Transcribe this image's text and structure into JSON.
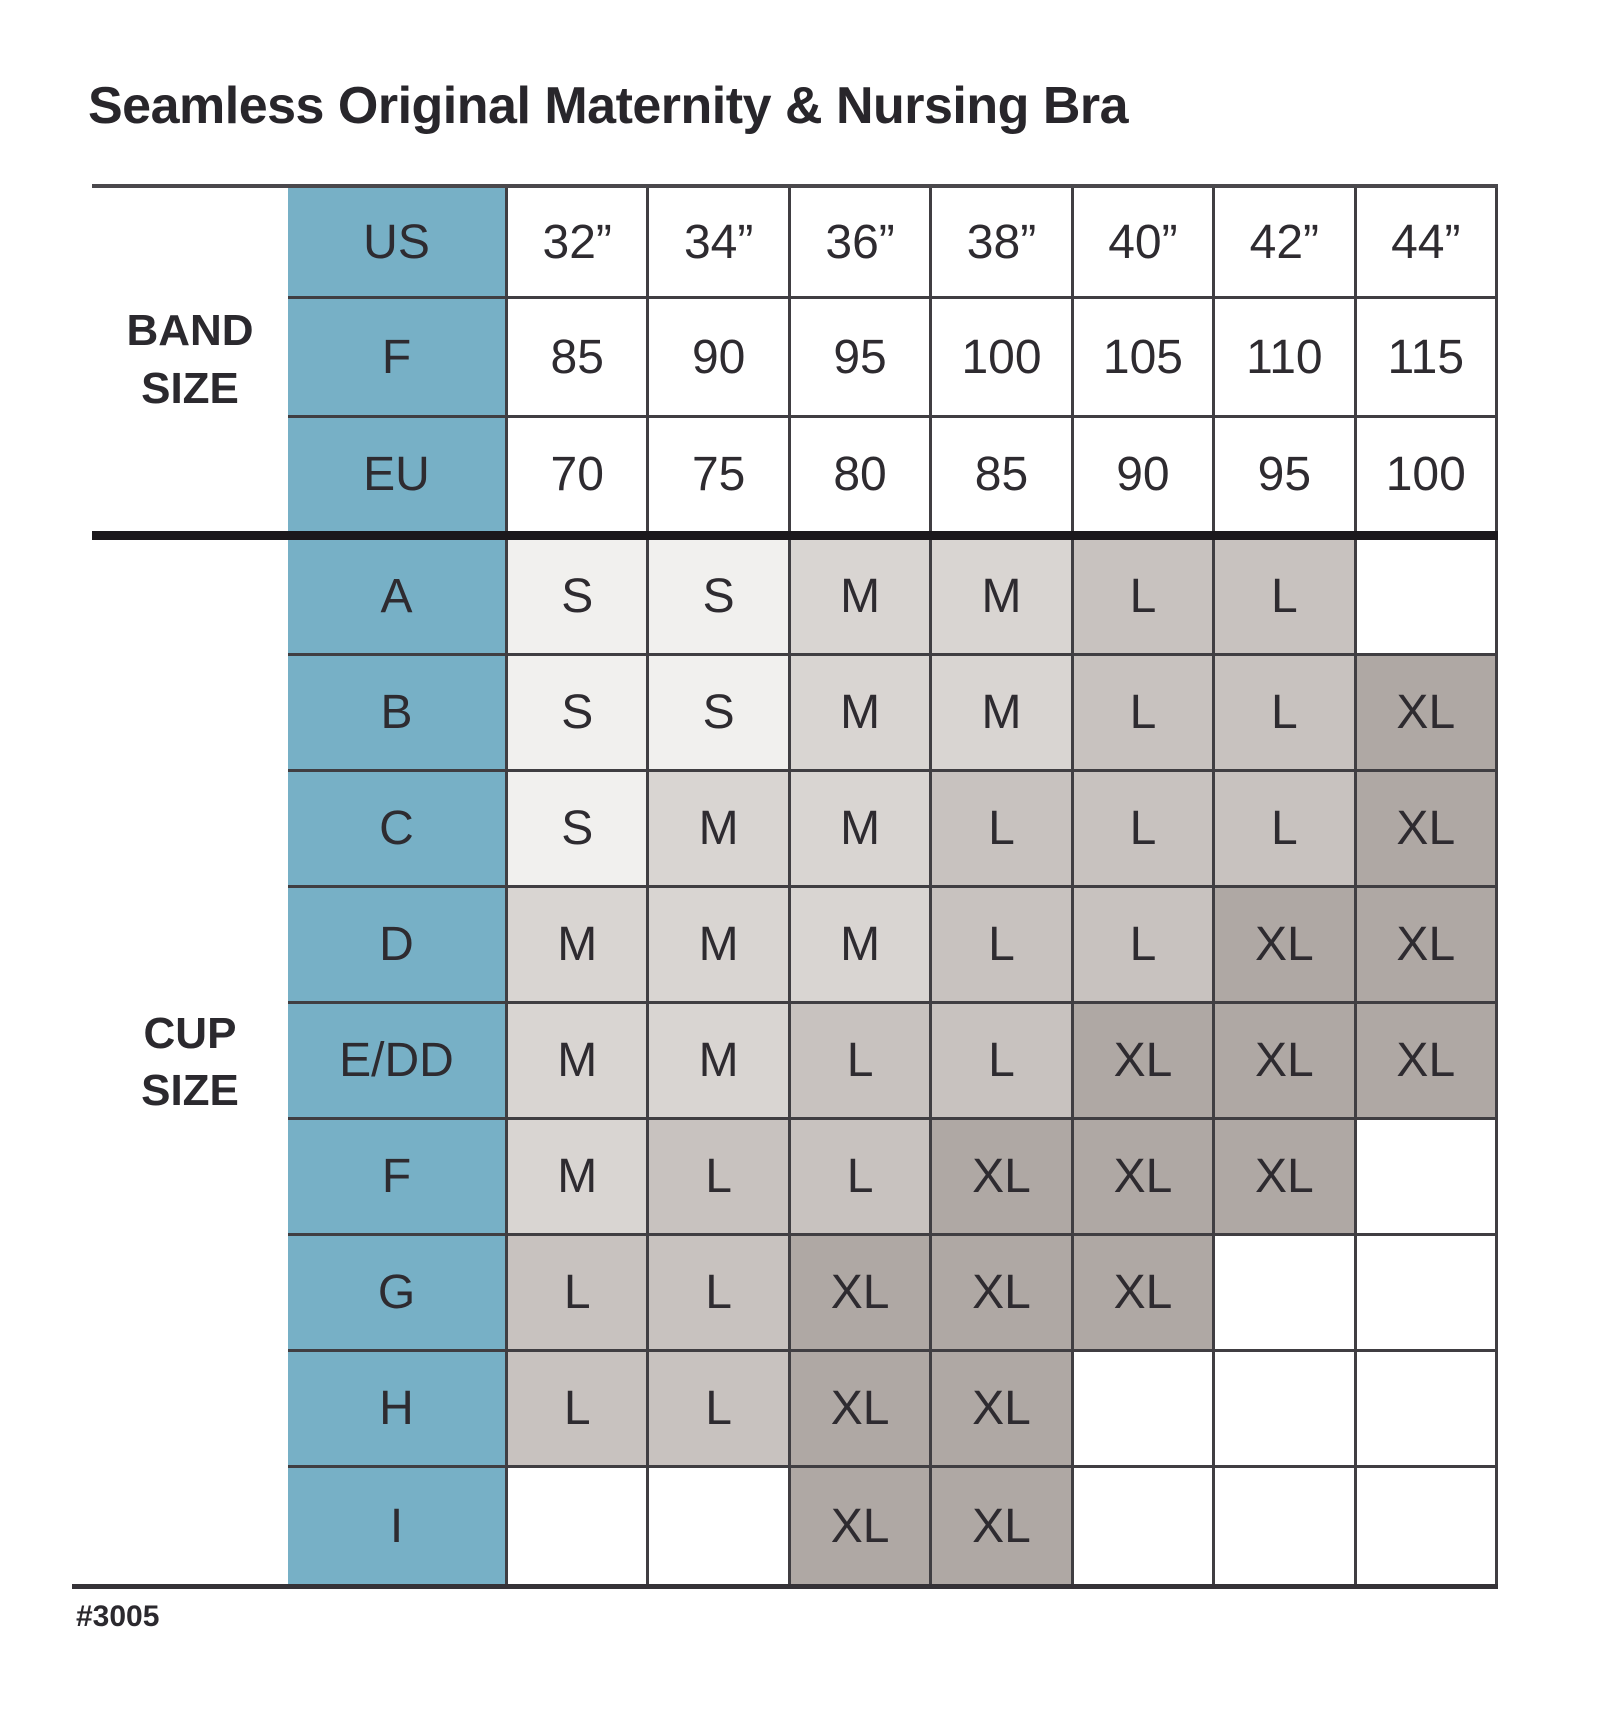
{
  "page": {
    "title": "Seamless Original Maternity & Nursing Bra",
    "product_number": "#3005"
  },
  "labels": {
    "band_size": "BAND\nSIZE",
    "cup_size": "CUP\nSIZE"
  },
  "chart_data": {
    "type": "table",
    "title": "Seamless Original Maternity & Nursing Bra",
    "band_size_rows": [
      {
        "label": "US",
        "values": [
          "32”",
          "34”",
          "36”",
          "38”",
          "40”",
          "42”",
          "44”"
        ]
      },
      {
        "label": "F",
        "values": [
          "85",
          "90",
          "95",
          "100",
          "105",
          "110",
          "115"
        ]
      },
      {
        "label": "EU",
        "values": [
          "70",
          "75",
          "80",
          "85",
          "90",
          "95",
          "100"
        ]
      }
    ],
    "cup_size_rows": [
      {
        "label": "A",
        "values": [
          "S",
          "S",
          "M",
          "M",
          "L",
          "L",
          ""
        ]
      },
      {
        "label": "B",
        "values": [
          "S",
          "S",
          "M",
          "M",
          "L",
          "L",
          "XL"
        ]
      },
      {
        "label": "C",
        "values": [
          "S",
          "M",
          "M",
          "L",
          "L",
          "L",
          "XL"
        ]
      },
      {
        "label": "D",
        "values": [
          "M",
          "M",
          "M",
          "L",
          "L",
          "XL",
          "XL"
        ]
      },
      {
        "label": "E/DD",
        "values": [
          "M",
          "M",
          "L",
          "L",
          "XL",
          "XL",
          "XL"
        ]
      },
      {
        "label": "F",
        "values": [
          "M",
          "L",
          "L",
          "XL",
          "XL",
          "XL",
          ""
        ]
      },
      {
        "label": "G",
        "values": [
          "L",
          "L",
          "XL",
          "XL",
          "XL",
          "",
          ""
        ]
      },
      {
        "label": "H",
        "values": [
          "L",
          "L",
          "XL",
          "XL",
          "",
          "",
          ""
        ]
      },
      {
        "label": "I",
        "values": [
          "",
          "",
          "XL",
          "XL",
          "",
          "",
          ""
        ]
      }
    ],
    "colors": {
      "header_column": "#77b0c6",
      "shade_S": "#f1f0ee",
      "shade_M": "#d9d5d2",
      "shade_L": "#c8c2bf",
      "shade_XL": "#afa8a4",
      "empty": "#ffffff"
    }
  }
}
